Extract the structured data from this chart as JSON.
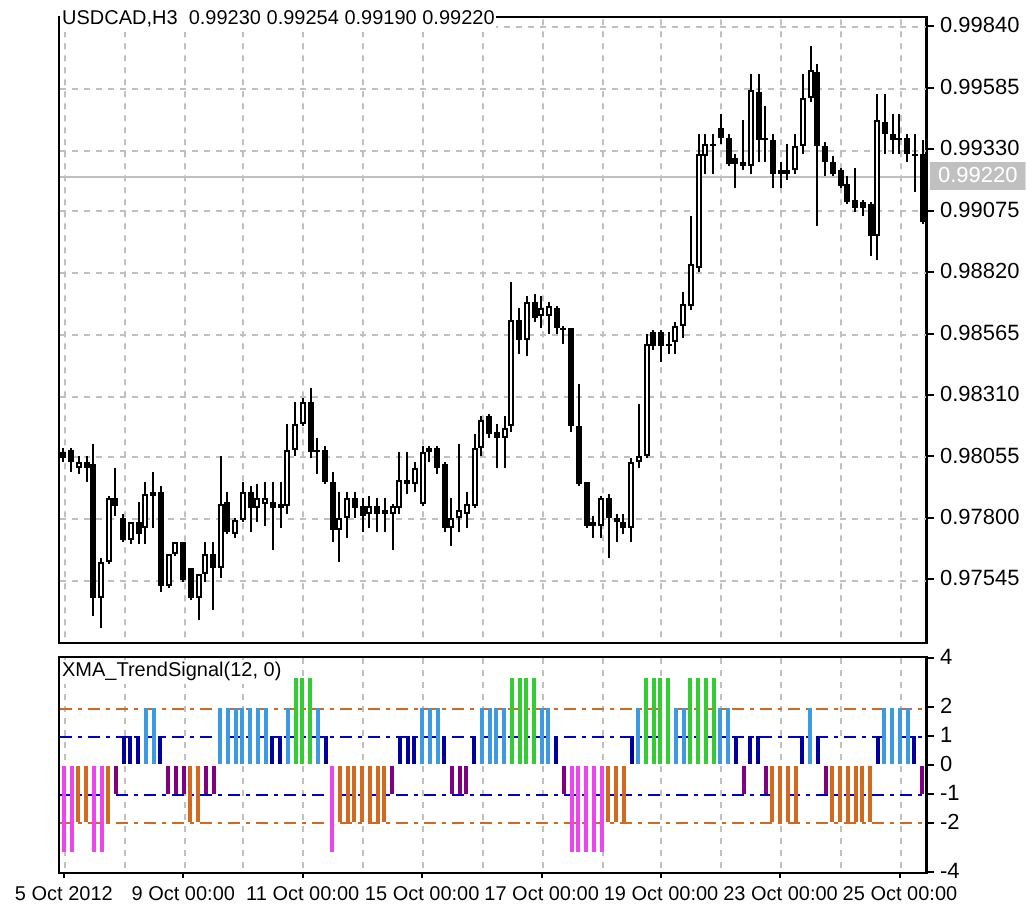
{
  "chart_data": [
    {
      "type": "candlestick",
      "title": "USDCAD,H3  0.99230 0.99254 0.99190 0.99220",
      "categories": [
        null,
        null,
        null,
        null,
        null,
        null,
        null,
        null,
        null,
        null,
        null,
        null,
        null,
        null,
        null,
        null,
        null,
        null,
        null,
        null,
        null,
        null,
        null,
        null,
        null,
        null,
        null,
        null,
        null,
        null,
        null,
        null,
        null,
        null,
        null,
        null,
        null,
        null,
        null,
        null,
        null,
        null,
        null,
        null,
        null,
        null,
        null,
        null,
        null,
        null,
        null,
        null,
        null,
        null,
        null,
        null,
        null,
        null,
        null,
        null,
        null,
        null,
        null,
        null,
        null,
        null,
        null,
        null,
        null,
        null,
        null,
        null,
        null,
        null,
        null,
        null,
        null,
        null,
        null,
        null,
        null,
        null,
        null,
        null,
        null,
        null,
        null,
        null,
        null,
        null,
        null,
        null,
        null,
        null,
        null,
        null,
        null,
        null,
        null,
        null,
        null,
        null,
        null,
        null,
        null,
        null,
        null,
        null,
        null,
        null,
        null,
        null,
        null,
        null,
        null,
        null
      ],
      "ohlc": [
        [
          0.9807,
          0.9809,
          0.9803,
          0.9805
        ],
        [
          0.9808,
          0.9809,
          0.9799,
          0.9803
        ],
        [
          0.9801,
          0.9806,
          0.9798,
          0.9803
        ],
        [
          0.9803,
          0.9806,
          0.9795,
          0.9801
        ],
        [
          0.9802,
          0.9811,
          0.9739,
          0.9747
        ],
        [
          0.9747,
          0.9763,
          0.9734,
          0.9762
        ],
        [
          0.9762,
          0.9789,
          0.9761,
          0.9788
        ],
        [
          0.9788,
          0.9801,
          0.9781,
          0.9785
        ],
        [
          0.978,
          0.9782,
          0.977,
          0.9771
        ],
        [
          0.9771,
          0.9778,
          0.9769,
          0.9778
        ],
        [
          0.9778,
          0.9787,
          0.9769,
          0.9773
        ],
        [
          0.9776,
          0.9795,
          0.9769,
          0.979
        ],
        [
          0.9789,
          0.9799,
          0.9776,
          0.9791
        ],
        [
          0.9791,
          0.9793,
          0.9749,
          0.9752
        ],
        [
          0.9752,
          0.9765,
          0.9751,
          0.9765
        ],
        [
          0.9765,
          0.977,
          0.9764,
          0.977
        ],
        [
          0.977,
          0.977,
          0.9753,
          0.9754
        ],
        [
          0.9759,
          0.9759,
          0.9746,
          0.9747
        ],
        [
          0.9747,
          0.9757,
          0.9738,
          0.9757
        ],
        [
          0.9757,
          0.977,
          0.9753,
          0.9765
        ],
        [
          0.9765,
          0.977,
          0.9742,
          0.9759
        ],
        [
          0.9759,
          0.9806,
          0.9755,
          0.9786
        ],
        [
          0.9787,
          0.9791,
          0.9773,
          0.9774
        ],
        [
          0.9773,
          0.978,
          0.9772,
          0.9779
        ],
        [
          0.9779,
          0.9795,
          0.9778,
          0.9791
        ],
        [
          0.9791,
          0.9793,
          0.9774,
          0.9784
        ],
        [
          0.9784,
          0.9794,
          0.9778,
          0.9788
        ],
        [
          0.9786,
          0.9795,
          0.9777,
          0.9788
        ],
        [
          0.9787,
          0.9795,
          0.9767,
          0.9784
        ],
        [
          0.9784,
          0.9795,
          0.9776,
          0.9786
        ],
        [
          0.9785,
          0.9819,
          0.9782,
          0.9808
        ],
        [
          0.9808,
          0.9828,
          0.9806,
          0.9819
        ],
        [
          0.9819,
          0.983,
          0.9818,
          0.9828
        ],
        [
          0.9828,
          0.9834,
          0.9805,
          0.9807
        ],
        [
          0.9808,
          0.9813,
          0.9798,
          0.9807
        ],
        [
          0.9808,
          0.981,
          0.9794,
          0.9795
        ],
        [
          0.9795,
          0.9799,
          0.977,
          0.9775
        ],
        [
          0.9775,
          0.9791,
          0.9762,
          0.978
        ],
        [
          0.978,
          0.9791,
          0.9772,
          0.9788
        ],
        [
          0.9788,
          0.9791,
          0.978,
          0.9784
        ],
        [
          0.9785,
          0.9788,
          0.9774,
          0.9781
        ],
        [
          0.9782,
          0.9789,
          0.9776,
          0.9785
        ],
        [
          0.9785,
          0.9788,
          0.9774,
          0.9782
        ],
        [
          0.9782,
          0.9788,
          0.9774,
          0.9783
        ],
        [
          0.9782,
          0.9786,
          0.9767,
          0.9785
        ],
        [
          0.9784,
          0.9807,
          0.9782,
          0.9796
        ],
        [
          0.9796,
          0.9807,
          0.979,
          0.9794
        ],
        [
          0.9794,
          0.9803,
          0.9791,
          0.9801
        ],
        [
          0.9786,
          0.981,
          0.9785,
          0.9807
        ],
        [
          0.9807,
          0.981,
          0.9803,
          0.9809
        ],
        [
          0.9809,
          0.981,
          0.9798,
          0.9801
        ],
        [
          0.9802,
          0.9803,
          0.9774,
          0.9776
        ],
        [
          0.9776,
          0.9788,
          0.9768,
          0.978
        ],
        [
          0.978,
          0.9811,
          0.9774,
          0.9783
        ],
        [
          0.9782,
          0.9791,
          0.9776,
          0.9786
        ],
        [
          0.9785,
          0.9815,
          0.9784,
          0.9809
        ],
        [
          0.9809,
          0.9822,
          0.9806,
          0.9821
        ],
        [
          0.9822,
          0.9823,
          0.9813,
          0.9815
        ],
        [
          0.9816,
          0.9819,
          0.9801,
          0.9813
        ],
        [
          0.9813,
          0.9822,
          0.9801,
          0.9817
        ],
        [
          0.9818,
          0.9878,
          0.9816,
          0.9862
        ],
        [
          0.9862,
          0.9867,
          0.9848,
          0.9854
        ],
        [
          0.9854,
          0.9872,
          0.9847,
          0.987
        ],
        [
          0.987,
          0.9873,
          0.9861,
          0.9863
        ],
        [
          0.9864,
          0.9872,
          0.9859,
          0.9867
        ],
        [
          0.9864,
          0.987,
          0.9856,
          0.9868
        ],
        [
          0.9867,
          0.9868,
          0.9856,
          0.9859
        ],
        [
          0.9859,
          0.986,
          0.9852,
          0.9858
        ],
        [
          0.9859,
          0.9859,
          0.9816,
          0.9818
        ],
        [
          0.9818,
          0.9836,
          0.9793,
          0.9794
        ],
        [
          0.9795,
          0.9795,
          0.9776,
          0.9777
        ],
        [
          0.9778,
          0.9781,
          0.9772,
          0.9777
        ],
        [
          0.9777,
          0.9789,
          0.9772,
          0.9788
        ],
        [
          0.9788,
          0.979,
          0.9763,
          0.978
        ],
        [
          0.978,
          0.9782,
          0.977,
          0.9778
        ],
        [
          0.9778,
          0.9782,
          0.9773,
          0.9776
        ],
        [
          0.9776,
          0.9805,
          0.977,
          0.9803
        ],
        [
          0.9803,
          0.9827,
          0.9801,
          0.9806
        ],
        [
          0.9806,
          0.9856,
          0.9805,
          0.9852
        ],
        [
          0.9857,
          0.9858,
          0.985,
          0.9851
        ],
        [
          0.9857,
          0.9858,
          0.9845,
          0.9851
        ],
        [
          0.9851,
          0.9857,
          0.9848,
          0.9852
        ],
        [
          0.9853,
          0.9861,
          0.9848,
          0.986
        ],
        [
          0.986,
          0.9874,
          0.9855,
          0.9869
        ],
        [
          0.9868,
          0.9905,
          0.9866,
          0.9885
        ],
        [
          0.9884,
          0.9939,
          0.9882,
          0.9931
        ],
        [
          0.993,
          0.9939,
          0.9923,
          0.9935
        ],
        [
          0.9935,
          0.9939,
          0.9923,
          0.9934
        ],
        [
          0.9942,
          0.9948,
          0.9935,
          0.9938
        ],
        [
          0.9938,
          0.9939,
          0.9926,
          0.9927
        ],
        [
          0.9929,
          0.9931,
          0.9917,
          0.9927
        ],
        [
          0.9926,
          0.9945,
          0.9924,
          0.9928
        ],
        [
          0.9926,
          0.9964,
          0.9923,
          0.9958
        ],
        [
          0.9957,
          0.9964,
          0.9928,
          0.9937
        ],
        [
          0.9938,
          0.9951,
          0.9928,
          0.9937
        ],
        [
          0.9937,
          0.9939,
          0.9917,
          0.9923
        ],
        [
          0.9924,
          0.9928,
          0.9917,
          0.9923
        ],
        [
          0.9923,
          0.9935,
          0.992,
          0.9924
        ],
        [
          0.9924,
          0.9939,
          0.9923,
          0.9934
        ],
        [
          0.9934,
          0.9964,
          0.9931,
          0.9954
        ],
        [
          0.9954,
          0.9976,
          0.9953,
          0.9966
        ],
        [
          0.9965,
          0.9968,
          0.9901,
          0.9934
        ],
        [
          0.9934,
          0.9936,
          0.9922,
          0.9928
        ],
        [
          0.9928,
          0.993,
          0.9922,
          0.9923
        ],
        [
          0.9924,
          0.9925,
          0.9917,
          0.9918
        ],
        [
          0.9919,
          0.9922,
          0.991,
          0.9911
        ],
        [
          0.9912,
          0.9925,
          0.9907,
          0.9909
        ],
        [
          0.9911,
          0.9912,
          0.9905,
          0.9909
        ],
        [
          0.991,
          0.9911,
          0.9889,
          0.9897
        ],
        [
          0.9897,
          0.9956,
          0.9887,
          0.9945
        ],
        [
          0.9944,
          0.9956,
          0.9931,
          0.9939
        ],
        [
          0.9939,
          0.9948,
          0.9931,
          0.9937
        ],
        [
          0.9937,
          0.9948,
          0.9931,
          0.9938
        ],
        [
          0.9938,
          0.9939,
          0.9928,
          0.9931
        ],
        [
          0.9931,
          0.9939,
          0.9915,
          0.993
        ],
        [
          0.9931,
          0.9937,
          0.9902,
          0.9903
        ]
      ],
      "ylim": [
        0.9729,
        0.9987
      ],
      "yticks": [
        {
          "value": 0.9984,
          "label": "0.99840"
        },
        0.99585,
        {
          "value": 0.9933,
          "label": "0.99330"
        },
        0.99075,
        {
          "value": 0.9882,
          "label": "0.98820"
        },
        0.98565,
        {
          "value": 0.9831,
          "label": "0.98310"
        },
        0.98055,
        {
          "value": 0.978,
          "label": "0.97800"
        },
        0.97545
      ],
      "grid": true,
      "tick_labels": "y",
      "ref_lines": [
        {
          "axis": "y",
          "value": 0.9922,
          "label": "0.99220",
          "color": "#c0c0c0"
        }
      ]
    },
    {
      "type": "bar",
      "title": "XMA_TrendSignal(12, 0)",
      "categories": [
        "5 Oct 2012",
        null,
        null,
        null,
        null,
        null,
        null,
        null,
        null,
        null,
        null,
        null,
        null,
        null,
        null,
        null,
        "9 Oct 00:00",
        null,
        null,
        null,
        null,
        null,
        null,
        null,
        null,
        null,
        null,
        null,
        null,
        null,
        null,
        null,
        "11 Oct 00:00",
        null,
        null,
        null,
        null,
        null,
        null,
        null,
        null,
        null,
        null,
        null,
        null,
        null,
        null,
        null,
        "15 Oct 00:00",
        null,
        null,
        null,
        null,
        null,
        null,
        null,
        null,
        null,
        null,
        null,
        null,
        null,
        null,
        null,
        "17 Oct 00:00",
        null,
        null,
        null,
        null,
        null,
        null,
        null,
        null,
        null,
        null,
        null,
        null,
        null,
        null,
        null,
        "19 Oct 00:00",
        null,
        null,
        null,
        null,
        null,
        null,
        null,
        null,
        null,
        null,
        null,
        null,
        null,
        null,
        null,
        "23 Oct 00:00",
        null,
        null,
        null,
        null,
        null,
        null,
        null,
        null,
        null,
        null,
        null,
        null,
        null,
        null,
        null,
        "25 Oct 00:00",
        null,
        null,
        null
      ],
      "values": [
        -3,
        -3,
        -2,
        -2,
        -3,
        -3,
        -2,
        -1,
        1,
        1,
        1,
        2,
        2,
        1,
        -1,
        -1,
        -1,
        -2,
        -2,
        -1,
        -1,
        2,
        2,
        2,
        2,
        2,
        2,
        2,
        1,
        1,
        2,
        3,
        3,
        3,
        2,
        1,
        -3,
        -2,
        -2,
        -2,
        -2,
        -2,
        -2,
        -2,
        -1,
        1,
        1,
        1,
        2,
        2,
        2,
        1,
        -1,
        -1,
        -1,
        1,
        2,
        2,
        2,
        2,
        3,
        3,
        3,
        3,
        2,
        2,
        1,
        -1,
        -3,
        -3,
        -3,
        -3,
        -3,
        -2,
        -2,
        -2,
        1,
        2,
        3,
        3,
        3,
        3,
        2,
        2,
        3,
        3,
        3,
        3,
        2,
        2,
        1,
        -1,
        1,
        1,
        -1,
        -2,
        -2,
        -2,
        -2,
        1,
        2,
        1,
        -1,
        -2,
        -2,
        -2,
        -2,
        -2,
        -2,
        1,
        2,
        2,
        2,
        2,
        1,
        -1
      ],
      "colors": [
        "#ee44ee",
        "#ee44ee",
        "#d2691e",
        "#d2691e",
        "#ee44ee",
        "#ee44ee",
        "#d2691e",
        "#800080",
        "#0000a0",
        "#0000a0",
        "#0000a0",
        "#3b9ae1",
        "#3b9ae1",
        "#0000a0",
        "#800080",
        "#800080",
        "#800080",
        "#d2691e",
        "#d2691e",
        "#800080",
        "#800080",
        "#3b9ae1",
        "#3b9ae1",
        "#3b9ae1",
        "#3b9ae1",
        "#3b9ae1",
        "#3b9ae1",
        "#3b9ae1",
        "#0000a0",
        "#0000a0",
        "#3b9ae1",
        "#32cd32",
        "#32cd32",
        "#32cd32",
        "#3b9ae1",
        "#0000a0",
        "#ee44ee",
        "#d2691e",
        "#d2691e",
        "#d2691e",
        "#d2691e",
        "#d2691e",
        "#d2691e",
        "#d2691e",
        "#800080",
        "#0000a0",
        "#0000a0",
        "#0000a0",
        "#3b9ae1",
        "#3b9ae1",
        "#3b9ae1",
        "#0000a0",
        "#800080",
        "#800080",
        "#800080",
        "#0000a0",
        "#3b9ae1",
        "#3b9ae1",
        "#3b9ae1",
        "#3b9ae1",
        "#32cd32",
        "#32cd32",
        "#32cd32",
        "#32cd32",
        "#3b9ae1",
        "#3b9ae1",
        "#0000a0",
        "#800080",
        "#ee44ee",
        "#ee44ee",
        "#ee44ee",
        "#ee44ee",
        "#ee44ee",
        "#d2691e",
        "#d2691e",
        "#d2691e",
        "#0000a0",
        "#3b9ae1",
        "#32cd32",
        "#32cd32",
        "#32cd32",
        "#32cd32",
        "#3b9ae1",
        "#3b9ae1",
        "#32cd32",
        "#32cd32",
        "#32cd32",
        "#32cd32",
        "#3b9ae1",
        "#3b9ae1",
        "#0000a0",
        "#800080",
        "#0000a0",
        "#0000a0",
        "#800080",
        "#d2691e",
        "#d2691e",
        "#d2691e",
        "#d2691e",
        "#0000a0",
        "#3b9ae1",
        "#0000a0",
        "#800080",
        "#d2691e",
        "#d2691e",
        "#d2691e",
        "#d2691e",
        "#d2691e",
        "#d2691e",
        "#0000a0",
        "#3b9ae1",
        "#3b9ae1",
        "#3b9ae1",
        "#3b9ae1",
        "#0000a0",
        "#800080"
      ],
      "ylim": [
        -3.7,
        3.7
      ],
      "yticks": [
        {
          "value": 3.7,
          "label": "4"
        },
        2,
        1,
        0,
        -1,
        -2,
        {
          "value": -3.7,
          "label": "-4"
        }
      ],
      "grid": "x",
      "ref_lines": [
        {
          "axis": "y",
          "value": 2,
          "color": "#d2691e",
          "line_style": "dashed"
        },
        {
          "axis": "y",
          "value": 1,
          "color": "#0000c8",
          "line_style": "dashed"
        },
        {
          "axis": "y",
          "value": -1,
          "color": "#0000c8",
          "line_style": "dashed"
        },
        {
          "axis": "y",
          "value": -2,
          "color": "#d2691e",
          "line_style": "dashed"
        }
      ]
    }
  ]
}
